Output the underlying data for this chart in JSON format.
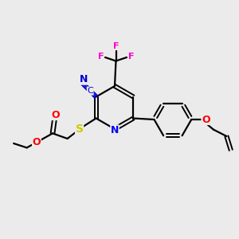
{
  "bg_color": "#ebebeb",
  "bond_color": "#000000",
  "N_color": "#0000ff",
  "O_color": "#ff0000",
  "S_color": "#cccc00",
  "F_color": "#ff00cc",
  "CN_color": "#0000cd",
  "figsize": [
    3.0,
    3.0
  ],
  "dpi": 100,
  "xlim": [
    0,
    10
  ],
  "ylim": [
    0,
    10
  ]
}
